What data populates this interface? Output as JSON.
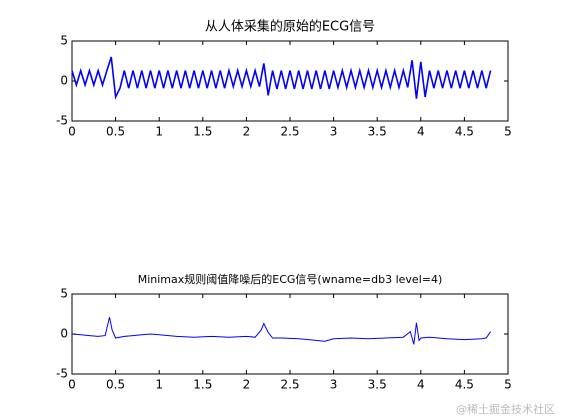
{
  "chart_data": [
    {
      "type": "line",
      "title": "从人体采集的原始的ECG信号",
      "xlim": [
        0,
        5
      ],
      "ylim": [
        -5,
        5
      ],
      "xticks": [
        0,
        0.5,
        1,
        1.5,
        2,
        2.5,
        3,
        3.5,
        4,
        4.5,
        5
      ],
      "yticks": [
        -5,
        0,
        5
      ],
      "series": [
        {
          "color": "#0000ff",
          "x": [
            0,
            0.05,
            0.1,
            0.15,
            0.2,
            0.25,
            0.3,
            0.35,
            0.4,
            0.45,
            0.5,
            0.55,
            0.6,
            0.65,
            0.7,
            0.75,
            0.8,
            0.85,
            0.9,
            0.95,
            1.0,
            1.05,
            1.1,
            1.15,
            1.2,
            1.25,
            1.3,
            1.35,
            1.4,
            1.45,
            1.5,
            1.55,
            1.6,
            1.65,
            1.7,
            1.75,
            1.8,
            1.85,
            1.9,
            1.95,
            2.0,
            2.05,
            2.1,
            2.15,
            2.2,
            2.25,
            2.3,
            2.35,
            2.4,
            2.45,
            2.5,
            2.55,
            2.6,
            2.65,
            2.7,
            2.75,
            2.8,
            2.85,
            2.9,
            2.95,
            3.0,
            3.05,
            3.1,
            3.15,
            3.2,
            3.25,
            3.3,
            3.35,
            3.4,
            3.45,
            3.5,
            3.55,
            3.6,
            3.65,
            3.7,
            3.75,
            3.8,
            3.85,
            3.9,
            3.95,
            4.0,
            4.05,
            4.1,
            4.15,
            4.2,
            4.25,
            4.3,
            4.35,
            4.4,
            4.45,
            4.5,
            4.55,
            4.6,
            4.65,
            4.7,
            4.75,
            4.8
          ],
          "values": [
            1.3,
            -0.5,
            1.3,
            -0.5,
            1.3,
            -0.5,
            1.3,
            -0.5,
            1.3,
            3.0,
            -2.0,
            -0.9,
            1.3,
            -0.9,
            1.3,
            -0.9,
            1.3,
            -0.9,
            1.3,
            -0.9,
            1.3,
            -0.9,
            1.3,
            -0.9,
            1.3,
            -0.9,
            1.3,
            -0.9,
            1.3,
            -0.9,
            1.3,
            -0.9,
            1.3,
            -0.9,
            1.3,
            -0.9,
            1.3,
            -0.7,
            1.3,
            -0.7,
            1.3,
            -0.7,
            1.3,
            -0.7,
            2.2,
            -1.8,
            1.3,
            -1.0,
            1.3,
            -1.0,
            1.3,
            -1.0,
            1.3,
            -1.0,
            1.3,
            -1.0,
            1.3,
            -1.0,
            1.3,
            -1.0,
            1.3,
            -0.8,
            1.3,
            -0.8,
            1.3,
            -0.8,
            1.3,
            -0.8,
            1.3,
            -0.8,
            1.3,
            -0.8,
            1.3,
            -0.8,
            1.3,
            -0.8,
            1.3,
            -0.8,
            2.6,
            -2.2,
            2.4,
            -2.0,
            1.3,
            -0.9,
            1.3,
            -0.9,
            1.3,
            -0.9,
            1.3,
            -0.9,
            1.3,
            -0.9,
            1.3,
            -0.9,
            1.3,
            -0.9,
            1.3
          ]
        }
      ]
    },
    {
      "type": "line",
      "title": "Minimax规则阈值降噪后的ECG信号(wname=db3 level=4)",
      "xlim": [
        0,
        5
      ],
      "ylim": [
        -5,
        5
      ],
      "xticks": [
        0,
        0.5,
        1,
        1.5,
        2,
        2.5,
        3,
        3.5,
        4,
        4.5,
        5
      ],
      "yticks": [
        -5,
        0,
        5
      ],
      "series": [
        {
          "color": "#0000ff",
          "x": [
            0,
            0.1,
            0.2,
            0.3,
            0.38,
            0.43,
            0.46,
            0.5,
            0.6,
            0.7,
            0.8,
            0.9,
            1.0,
            1.2,
            1.4,
            1.6,
            1.8,
            2.0,
            2.1,
            2.17,
            2.2,
            2.25,
            2.3,
            2.4,
            2.6,
            2.8,
            2.9,
            3.0,
            3.2,
            3.4,
            3.6,
            3.8,
            3.88,
            3.92,
            3.95,
            3.98,
            4.0,
            4.1,
            4.3,
            4.5,
            4.7,
            4.75,
            4.8
          ],
          "values": [
            0,
            -0.1,
            -0.2,
            -0.3,
            -0.2,
            2.1,
            0.5,
            -0.5,
            -0.3,
            -0.2,
            -0.1,
            0,
            -0.1,
            -0.3,
            -0.4,
            -0.3,
            -0.4,
            -0.3,
            -0.4,
            0.5,
            1.3,
            0.2,
            -0.5,
            -0.5,
            -0.6,
            -0.8,
            -0.9,
            -0.6,
            -0.5,
            -0.6,
            -0.5,
            -0.4,
            0.3,
            -1.3,
            1.4,
            -0.8,
            -0.5,
            -0.4,
            -0.6,
            -0.7,
            -0.6,
            -0.5,
            0.3
          ]
        }
      ]
    }
  ],
  "watermark": "@稀土掘金技术社区"
}
